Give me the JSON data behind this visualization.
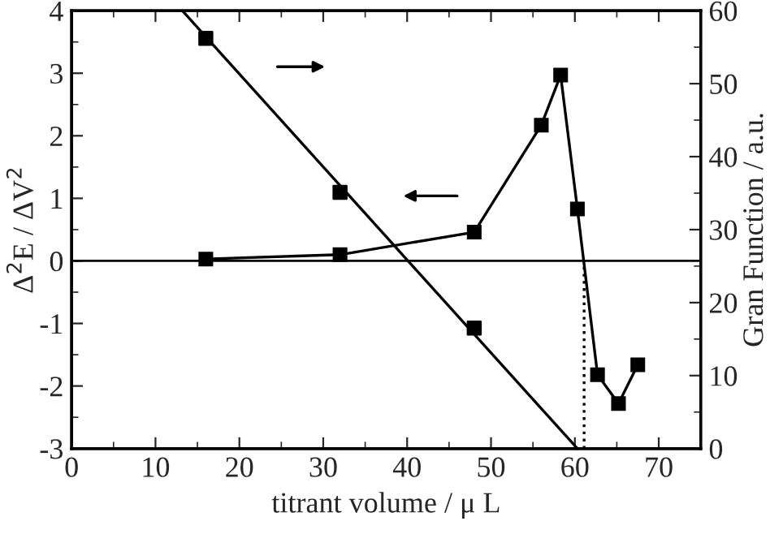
{
  "chart_data": {
    "type": "line",
    "xlabel": "titrant volume / μ L",
    "ylabel": "Δ$^{2}$E / ΔV$^{2}$",
    "y2label": "Gran Function / a.u.",
    "xlim": [
      0,
      75
    ],
    "xticks": [
      0,
      10,
      20,
      30,
      40,
      50,
      60,
      70
    ],
    "ylim": [
      -3,
      4
    ],
    "yticks": [
      -3,
      -2,
      -1,
      0,
      1,
      2,
      3,
      4
    ],
    "y2lim": [
      0,
      60
    ],
    "y2ticks": [
      0,
      10,
      20,
      30,
      40,
      50,
      60
    ],
    "grid": false,
    "legend": false,
    "series": [
      {
        "color": "#000000",
        "marker": "square",
        "line_style": "solid",
        "axis": "y",
        "x": [
          16,
          32,
          48,
          56,
          58.3,
          60.3,
          62.7,
          65.2,
          67.5
        ],
        "values": [
          0.03,
          0.1,
          0.46,
          2.17,
          2.97,
          0.83,
          -1.82,
          -2.28,
          -1.66
        ]
      },
      {
        "type": "scatter",
        "color": "#000000",
        "marker": "square",
        "axis": "y2",
        "x": [
          16,
          32,
          48
        ],
        "values": [
          56.2,
          35.1,
          16.5
        ]
      },
      {
        "type": "line",
        "color": "#000000",
        "marker": "none",
        "line_style": "solid",
        "axis": "y2",
        "x": [
          13.2,
          60.3
        ],
        "values": [
          60,
          0
        ]
      },
      {
        "type": "line",
        "color": "#000000",
        "marker": "none",
        "line_style": "dotted",
        "axis": "y",
        "x": [
          61.1,
          61.1
        ],
        "values": [
          -3,
          0
        ]
      }
    ],
    "ref_lines": [
      {
        "axis": "y",
        "value": 0,
        "color": "#000000",
        "line_style": "solid"
      }
    ]
  }
}
